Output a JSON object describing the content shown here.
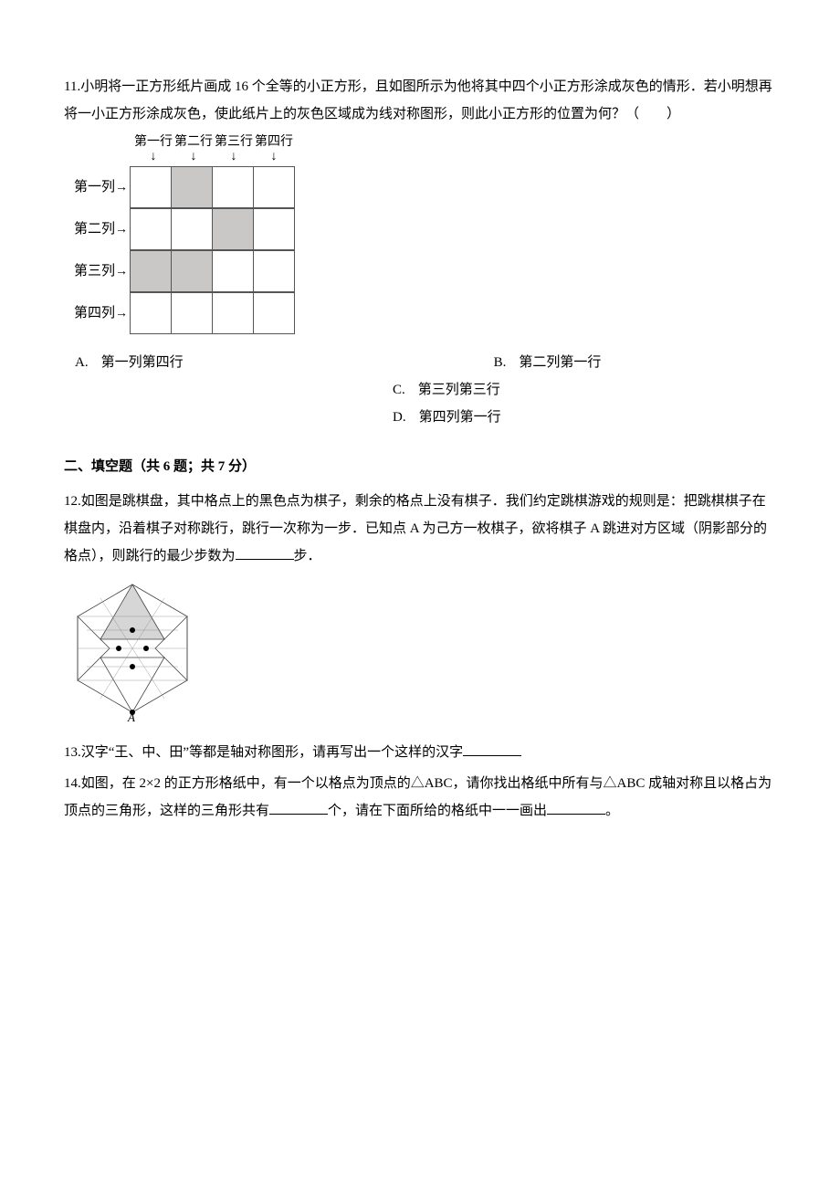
{
  "q11": {
    "text": "11.小明将一正方形纸片画成 16 个全等的小正方形，且如图所示为他将其中四个小正方形涂成灰色的情形．若小明想再将一小正方形涂成灰色，使此纸片上的灰色区域成为线对称图形，则此小正方形的位置为何？（　　）",
    "col_headers": [
      "第一行",
      "第二行",
      "第三行",
      "第四行"
    ],
    "row_labels": [
      "第一列",
      "第二列",
      "第三列",
      "第四列"
    ],
    "shaded_cells": [
      [
        0,
        1
      ],
      [
        1,
        2
      ],
      [
        2,
        0
      ],
      [
        2,
        1
      ]
    ],
    "options": {
      "A": "第一列第四行",
      "B": "第二列第一行",
      "C": "第三列第三行",
      "D": "第四列第一行"
    }
  },
  "section2_title": "二、填空题（共 6 题；共 7 分）",
  "q12": {
    "text_before": "12.如图是跳棋盘，其中格点上的黑色点为棋子，剩余的格点上没有棋子．我们约定跳棋游戏的规则是：把跳棋棋子在棋盘内，沿着棋子对称跳行，跳行一次称为一步．已知点 A 为己方一枚棋子，欲将棋子 A 跳进对方区域（阴影部分的格点），则跳行的最少步数为",
    "text_after": "步．",
    "fig_label": "A"
  },
  "q13": {
    "text_before": "13.汉字“王、中、田”等都是轴对称图形，请再写出一个这样的汉字"
  },
  "q14": {
    "text_before": "14.如图，在 2×2 的正方形格纸中，有一个以格点为顶点的△ABC，请你找出格纸中所有与△ABC 成轴对称且以格占为顶点的三角形，这样的三角形共有",
    "text_mid": "个，请在下面所给的格纸中一一画出",
    "text_after": "。"
  }
}
